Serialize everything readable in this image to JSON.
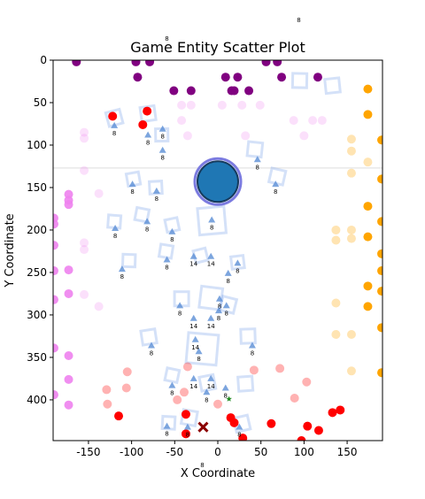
{
  "chart_data": {
    "type": "scatter",
    "title": "Game Entity Scatter Plot",
    "x_label": "X Coordinate",
    "y_label": "Y Coordinate",
    "xlim": [
      -191,
      191
    ],
    "ylim": [
      448,
      0
    ],
    "xticks": [
      -150,
      -100,
      -50,
      0,
      50,
      100,
      150
    ],
    "yticks": [
      0,
      50,
      100,
      150,
      200,
      250,
      300,
      350,
      400
    ],
    "hline": {
      "value": 127,
      "color": "#dddddd"
    },
    "annotations": [
      {
        "x": 94,
        "y": -45,
        "text": "8"
      },
      {
        "x": -59,
        "y": -23,
        "text": "8"
      },
      {
        "x": -18,
        "y": 479,
        "text": "8"
      }
    ],
    "series": [
      {
        "marker": "square",
        "color": "#6f9ae8",
        "alpha": 0.3,
        "x": [
          -120,
          -81,
          -65,
          43,
          69,
          -98,
          -72,
          -120,
          -88,
          -53,
          -7,
          -103,
          -60,
          -20,
          23,
          -42,
          -8,
          12,
          -80,
          35,
          -18,
          -53,
          -12,
          32,
          -57,
          -33,
          28,
          133,
          95
        ],
        "values": [
          68,
          63,
          88,
          105,
          137,
          140,
          150,
          190,
          182,
          194,
          189,
          236,
          225,
          230,
          238,
          281,
          280,
          288,
          326,
          325,
          340,
          371,
          380,
          381,
          427,
          421,
          428,
          30,
          24
        ],
        "sizes": [
          16,
          16,
          14,
          16,
          16,
          14,
          14,
          14,
          14,
          14,
          30,
          14,
          14,
          14,
          14,
          16,
          24,
          16,
          16,
          16,
          34,
          14,
          16,
          16,
          14,
          16,
          16,
          16,
          16
        ]
      },
      {
        "marker": "circle",
        "color": "#ee82ee",
        "alpha": 0.25,
        "x": [
          -155,
          -155,
          -155,
          -138,
          -155,
          -155,
          -155,
          -138,
          -42,
          -31,
          -42,
          -35,
          5,
          28,
          49,
          32,
          88,
          110,
          121,
          100
        ],
        "values": [
          85,
          92,
          130,
          157,
          215,
          223,
          276,
          290,
          53,
          53,
          71,
          89,
          53,
          53,
          53,
          89,
          71,
          71,
          71,
          89
        ]
      },
      {
        "marker": "circle",
        "color": "#ffa500",
        "alpha": 0.3,
        "x": [
          155,
          155,
          155,
          174,
          155,
          137,
          137,
          155,
          137,
          137,
          155,
          155
        ],
        "values": [
          93,
          107,
          133,
          120,
          200,
          200,
          212,
          210,
          286,
          323,
          323,
          366
        ]
      },
      {
        "marker": "circle",
        "color": "#ff0000",
        "alpha": 0.3,
        "x": [
          -129,
          -128,
          -106,
          -105,
          -35,
          -39,
          -47,
          0,
          42,
          72,
          89,
          103
        ],
        "values": [
          388,
          405,
          386,
          367,
          361,
          391,
          400,
          405,
          365,
          363,
          398,
          379
        ]
      },
      {
        "marker": "circle",
        "color": "#800080",
        "alpha": 1,
        "x": [
          -164,
          -95,
          -79,
          -93,
          -51,
          -31,
          9,
          23,
          16,
          19,
          36,
          56,
          69,
          74,
          116
        ],
        "values": [
          2,
          2,
          2,
          20,
          36,
          36,
          20,
          20,
          36,
          36,
          36,
          2,
          2,
          20,
          20
        ]
      },
      {
        "marker": "circle",
        "color": "#ee82ee",
        "alpha": 0.9,
        "x": [
          -173,
          -173,
          -173,
          -173,
          -173,
          -173,
          -173,
          -173,
          -190,
          -190,
          -190,
          -190,
          -190,
          -190,
          -190
        ],
        "values": [
          158,
          165,
          170,
          247,
          275,
          348,
          376,
          406,
          186,
          193,
          218,
          248,
          282,
          339,
          394
        ]
      },
      {
        "marker": "circle",
        "color": "#ffa500",
        "alpha": 1,
        "x": [
          174,
          174,
          174,
          174,
          174,
          174,
          190,
          190,
          190,
          190,
          190,
          190,
          190,
          190
        ],
        "values": [
          34,
          64,
          172,
          208,
          266,
          290,
          94,
          140,
          190,
          228,
          248,
          272,
          315,
          368
        ]
      },
      {
        "marker": "circle",
        "color": "#ff0000",
        "alpha": 1,
        "x": [
          -122,
          -82,
          -87,
          -115,
          -37,
          -37,
          15,
          19,
          29,
          62,
          104,
          117,
          133,
          142,
          97
        ],
        "values": [
          66,
          60,
          76,
          419,
          417,
          440,
          421,
          427,
          445,
          428,
          431,
          436,
          415,
          412,
          448
        ]
      },
      {
        "marker": "triangle",
        "color": "#5b8fd6",
        "alpha": 0.8,
        "x": [
          -120,
          -81,
          -64,
          -64,
          46,
          67,
          -99,
          -71,
          -119,
          -82,
          -53,
          -7,
          -59,
          -28,
          -8,
          23,
          -111,
          12,
          -44,
          2,
          -28,
          -8,
          1,
          10,
          -77,
          -26,
          -22,
          40,
          -28,
          -8,
          -53,
          -13,
          9,
          -59,
          -35,
          25
        ],
        "values": [
          77,
          88,
          81,
          106,
          117,
          146,
          146,
          154,
          198,
          190,
          202,
          188,
          235,
          231,
          231,
          239,
          246,
          251,
          289,
          281,
          304,
          304,
          295,
          289,
          336,
          329,
          343,
          336,
          375,
          375,
          383,
          391,
          386,
          431,
          432,
          432
        ],
        "labels": [
          8,
          8,
          8,
          8,
          8,
          8,
          8,
          8,
          8,
          8,
          8,
          8,
          8,
          14,
          14,
          8,
          8,
          8,
          8,
          8,
          14,
          14,
          8,
          8,
          8,
          14,
          8,
          8,
          14,
          14,
          8,
          8,
          8,
          8,
          8,
          8
        ]
      },
      {
        "marker": "big-circle",
        "color": "#1f77b4",
        "alpha": 1,
        "x": [
          0
        ],
        "values": [
          143
        ],
        "sizes": [
          24
        ]
      },
      {
        "marker": "x",
        "color": "#8b0000",
        "alpha": 1,
        "x": [
          -17
        ],
        "values": [
          432
        ]
      },
      {
        "marker": "star",
        "color": "#228b22",
        "alpha": 1,
        "x": [
          13
        ],
        "values": [
          399
        ]
      }
    ]
  }
}
